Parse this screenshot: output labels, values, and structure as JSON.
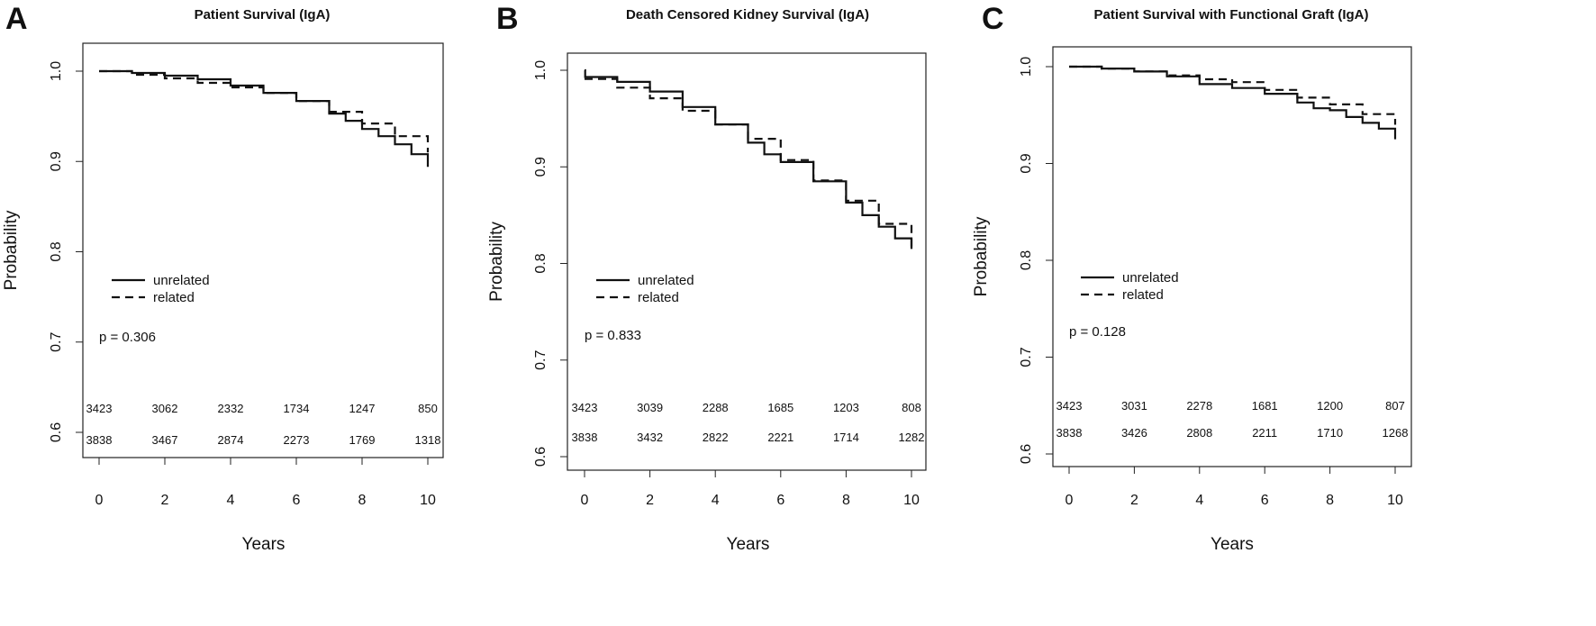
{
  "chart_data": [
    {
      "type": "line",
      "panel_label": "A",
      "title": "Patient Survival (IgA)",
      "xlabel": "Years",
      "ylabel": "Probability",
      "xlim": [
        0,
        10
      ],
      "ylim": [
        0.6,
        1.0
      ],
      "xticks": [
        "0",
        "2",
        "4",
        "6",
        "8",
        "10"
      ],
      "yticks": [
        "0.6",
        "0.7",
        "0.8",
        "0.9",
        "1.0"
      ],
      "legend": {
        "position": "left-middle",
        "entries": [
          "unrelated",
          "related"
        ]
      },
      "p_value": "p = 0.306",
      "series": [
        {
          "name": "unrelated",
          "line_style": "solid",
          "x": [
            0,
            1,
            2,
            3,
            4,
            5,
            6,
            7,
            7.5,
            8,
            8.5,
            9,
            9.5,
            10
          ],
          "y": [
            1.0,
            0.998,
            0.995,
            0.991,
            0.984,
            0.976,
            0.967,
            0.953,
            0.945,
            0.936,
            0.928,
            0.919,
            0.908,
            0.894
          ]
        },
        {
          "name": "related",
          "line_style": "dashed",
          "x": [
            0,
            1,
            2,
            3,
            4,
            5,
            6,
            7,
            8,
            9,
            10
          ],
          "y": [
            1.0,
            0.996,
            0.992,
            0.987,
            0.982,
            0.976,
            0.967,
            0.955,
            0.942,
            0.928,
            0.91
          ]
        }
      ],
      "risk_table": [
        [
          "3423",
          "3062",
          "2332",
          "1734",
          "1247",
          "850"
        ],
        [
          "3838",
          "3467",
          "2874",
          "2273",
          "1769",
          "1318"
        ]
      ]
    },
    {
      "type": "line",
      "panel_label": "B",
      "title": "Death Censored Kidney Survival (IgA)",
      "xlabel": "Years",
      "ylabel": "Probability",
      "xlim": [
        0,
        10
      ],
      "ylim": [
        0.6,
        1.0
      ],
      "xticks": [
        "0",
        "2",
        "4",
        "6",
        "8",
        "10"
      ],
      "yticks": [
        "0.6",
        "0.7",
        "0.8",
        "0.9",
        "1.0"
      ],
      "legend": {
        "position": "left-middle",
        "entries": [
          "unrelated",
          "related"
        ]
      },
      "p_value": "p = 0.833",
      "series": [
        {
          "name": "unrelated",
          "line_style": "solid",
          "x": [
            0,
            0.02,
            1,
            2,
            3,
            4,
            5,
            5.5,
            6,
            7,
            8,
            8.5,
            9,
            9.5,
            10
          ],
          "y": [
            1.0,
            0.993,
            0.988,
            0.978,
            0.962,
            0.944,
            0.925,
            0.913,
            0.905,
            0.885,
            0.863,
            0.85,
            0.838,
            0.826,
            0.815
          ]
        },
        {
          "name": "related",
          "line_style": "dashed",
          "x": [
            0,
            1,
            2,
            3,
            4,
            5,
            6,
            7,
            8,
            9,
            10
          ],
          "y": [
            0.991,
            0.982,
            0.971,
            0.958,
            0.944,
            0.929,
            0.907,
            0.886,
            0.865,
            0.841,
            0.817
          ]
        }
      ],
      "risk_table": [
        [
          "3423",
          "3039",
          "2288",
          "1685",
          "1203",
          "808"
        ],
        [
          "3838",
          "3432",
          "2822",
          "2221",
          "1714",
          "1282"
        ]
      ]
    },
    {
      "type": "line",
      "panel_label": "C",
      "title": "Patient Survival with Functional Graft (IgA)",
      "xlabel": "Years",
      "ylabel": "Probability",
      "xlim": [
        0,
        10
      ],
      "ylim": [
        0.6,
        1.0
      ],
      "xticks": [
        "0",
        "2",
        "4",
        "6",
        "8",
        "10"
      ],
      "yticks": [
        "0.6",
        "0.7",
        "0.8",
        "0.9",
        "1.0"
      ],
      "legend": {
        "position": "left-middle",
        "entries": [
          "unrelated",
          "related"
        ]
      },
      "p_value": "p = 0.128",
      "series": [
        {
          "name": "unrelated",
          "line_style": "solid",
          "x": [
            0,
            1,
            2,
            3,
            4,
            5,
            6,
            7,
            7.5,
            8,
            8.5,
            9,
            9.5,
            10
          ],
          "y": [
            1.0,
            0.998,
            0.995,
            0.99,
            0.982,
            0.978,
            0.972,
            0.963,
            0.957,
            0.955,
            0.948,
            0.942,
            0.936,
            0.925
          ]
        },
        {
          "name": "related",
          "line_style": "dashed",
          "x": [
            0,
            1,
            2,
            3,
            4,
            5,
            6,
            7,
            8,
            9,
            10
          ],
          "y": [
            1.0,
            0.998,
            0.995,
            0.991,
            0.987,
            0.984,
            0.976,
            0.968,
            0.961,
            0.951,
            0.94
          ]
        }
      ],
      "risk_table": [
        [
          "3423",
          "3031",
          "2278",
          "1681",
          "1200",
          "807"
        ],
        [
          "3838",
          "3426",
          "2808",
          "2211",
          "1710",
          "1268"
        ]
      ]
    }
  ]
}
